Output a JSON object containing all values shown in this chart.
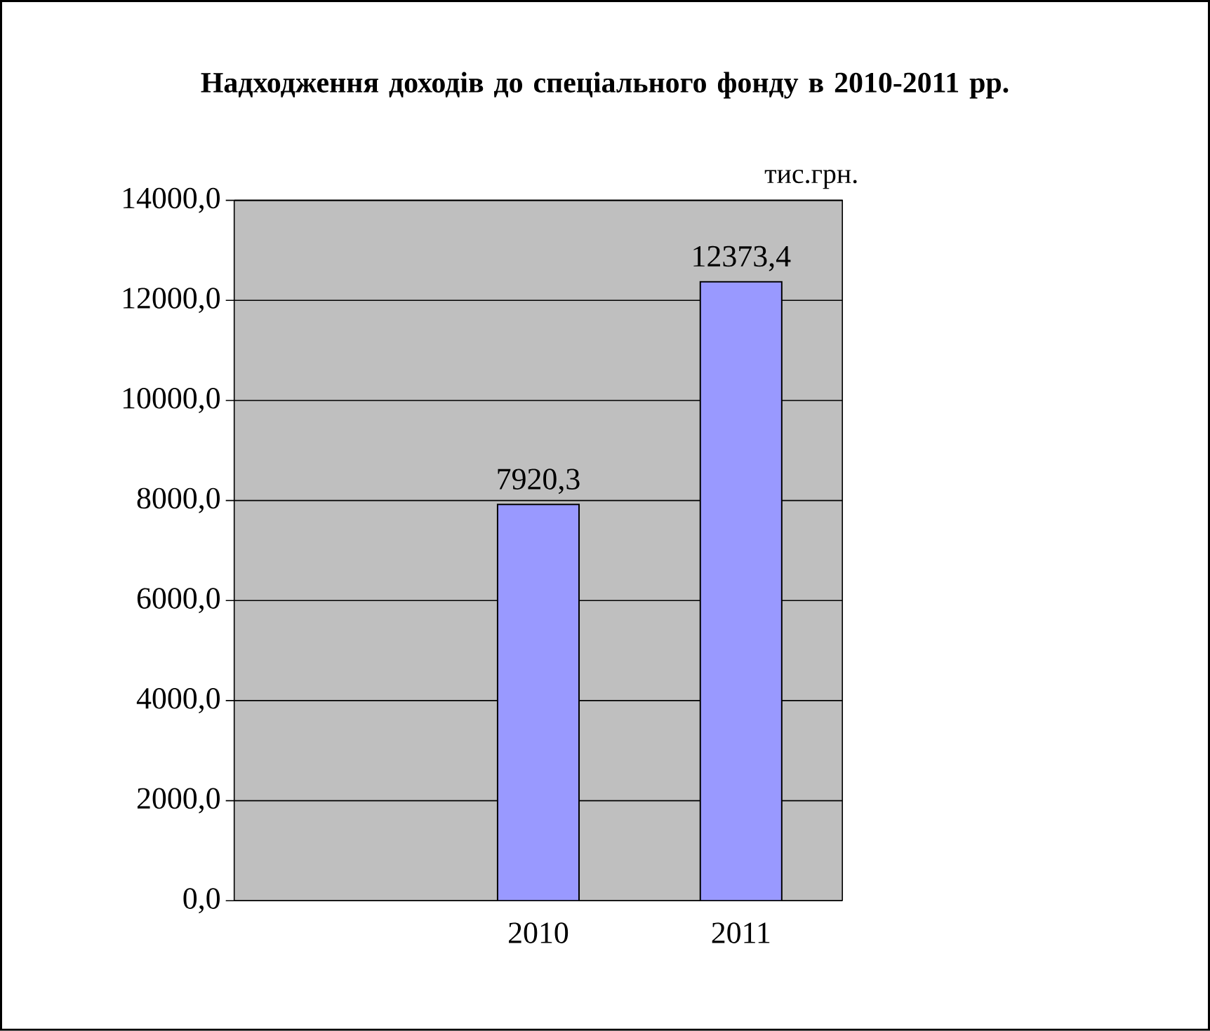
{
  "chart_data": {
    "type": "bar",
    "title": "Надходження доходів до спеціального фонду в 2010-2011 рр.",
    "categories": [
      null,
      "2010",
      "2011"
    ],
    "values": [
      null,
      7920.3,
      12373.4
    ],
    "value_labels": [
      null,
      "7920,3",
      "12373,4"
    ],
    "color": "#9999ff",
    "ylim": [
      0,
      14000
    ],
    "yticks": [
      {
        "value": 0,
        "label": "0,0"
      },
      {
        "value": 2000,
        "label": "2000,0"
      },
      {
        "value": 4000,
        "label": "4000,0"
      },
      {
        "value": 6000,
        "label": "6000,0"
      },
      {
        "value": 8000,
        "label": "8000,0"
      },
      {
        "value": 10000,
        "label": "10000,0"
      },
      {
        "value": 12000,
        "label": "12000,0"
      },
      {
        "value": 14000,
        "label": "14000,0"
      }
    ],
    "grid": "y",
    "annotations": [
      "тис.грн."
    ]
  }
}
